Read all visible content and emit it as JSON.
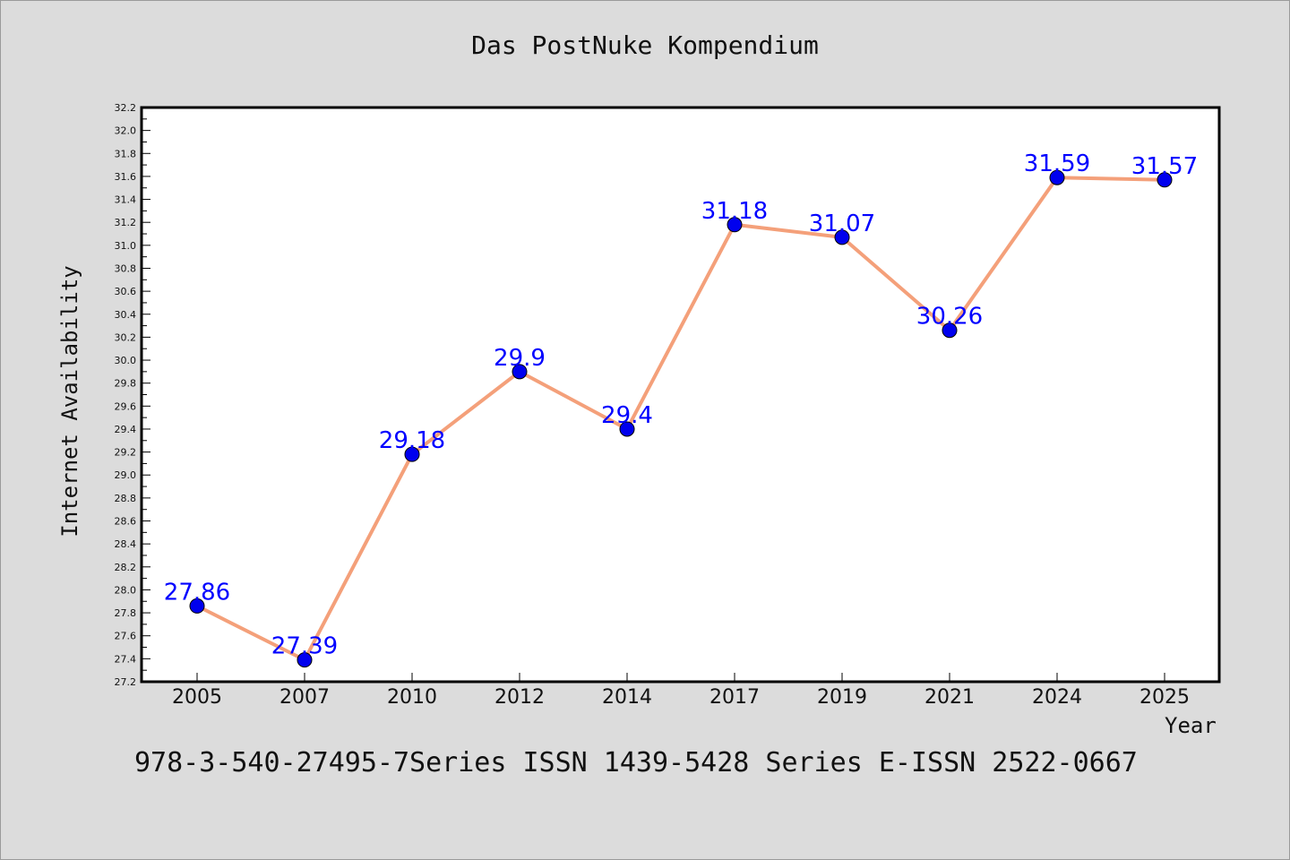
{
  "chart_data": {
    "type": "line",
    "title": "Das PostNuke Kompendium",
    "xlabel": "Year",
    "ylabel": "Internet Availability",
    "categories": [
      "2005",
      "2007",
      "2010",
      "2012",
      "2014",
      "2017",
      "2019",
      "2021",
      "2024",
      "2025"
    ],
    "values": [
      27.86,
      27.39,
      29.18,
      29.9,
      29.4,
      31.18,
      31.07,
      30.26,
      31.59,
      31.57
    ],
    "data_labels": [
      "27.86",
      "27.39",
      "29.18",
      "29.9",
      "29.4",
      "31.18",
      "31.07",
      "30.26",
      "31.59",
      "31.57"
    ],
    "ylim": [
      27.2,
      32.2
    ],
    "y_ticks": [
      "27.2",
      "27.4",
      "27.6",
      "27.8",
      "28.0",
      "28.2",
      "28.4",
      "28.6",
      "28.8",
      "29.0",
      "29.2",
      "29.4",
      "29.6",
      "29.8",
      "30.0",
      "30.2",
      "30.4",
      "30.6",
      "30.8",
      "31.0",
      "31.2",
      "31.4",
      "31.6",
      "31.8",
      "32.0",
      "32.2"
    ],
    "grid": false,
    "legend": "none",
    "colors": {
      "line": "#f4a07a",
      "marker": "#0000ee",
      "label": "#0000ff",
      "background": "#dcdcdc",
      "plot_background": "#ffffff"
    }
  },
  "footer_text": "978-3-540-27495-7Series ISSN 1439-5428 Series E-ISSN 2522-0667"
}
